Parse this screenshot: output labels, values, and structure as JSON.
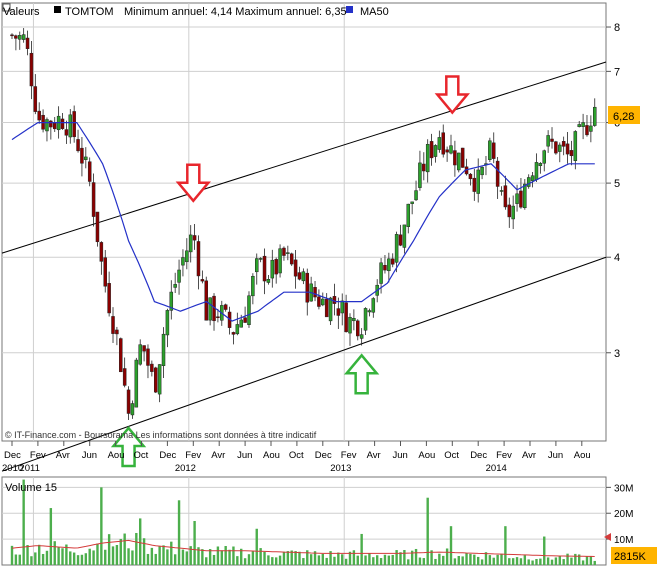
{
  "header": {
    "label": "Valeurs",
    "ticker": "TOMTOM",
    "range_text": "Minimum annuel: 4,14 Maximum annuel: 6,35",
    "ma_label": "MA50"
  },
  "price_badge": "6,28",
  "volume_badge": "2815K",
  "watermark": "© IT-Finance.com - Boursorama Les informations sont données à titre indicatif",
  "colors": {
    "up": "#2ca02c",
    "down": "#8b0000",
    "ma": "#2431c8",
    "trendline": "#000000",
    "grid": "#cfcfcf",
    "badge": "#ffb400",
    "arrow_down": "#e8262c",
    "arrow_up": "#36b33c",
    "volume_bar": "#4cae4c",
    "volume_ma": "#d43a3a"
  },
  "chart_data": [
    {
      "type": "candlestick",
      "title": "TOMTOM",
      "scale": "log",
      "ylim": [
        2.3,
        8.6
      ],
      "yticks": [
        3,
        4,
        5,
        6,
        7,
        8
      ],
      "x_tick_labels": [
        "Dec",
        "Fev",
        "Avr",
        "Jun",
        "Aou",
        "Oct",
        "Dec",
        "Fev",
        "Avr",
        "Jun",
        "Aou",
        "Oct",
        "Dec",
        "Fev",
        "Avr",
        "Jun",
        "Aou",
        "Oct",
        "Dec",
        "Fev",
        "Avr",
        "Jun",
        "Aou"
      ],
      "year_labels": [
        "2010",
        "2011",
        "2012",
        "2013",
        "2014"
      ],
      "price_anchors": [
        [
          "2010-12",
          7.8
        ],
        [
          "2011-01",
          7.7
        ],
        [
          "2011-02",
          6.1
        ],
        [
          "2011-03",
          6.0
        ],
        [
          "2011-04",
          6.1
        ],
        [
          "2011-05",
          5.7
        ],
        [
          "2011-06",
          5.0
        ],
        [
          "2011-07",
          3.8
        ],
        [
          "2011-08",
          3.2
        ],
        [
          "2011-09",
          2.5
        ],
        [
          "2011-10",
          3.1
        ],
        [
          "2011-11",
          2.7
        ],
        [
          "2011-12",
          3.4
        ],
        [
          "2012-01",
          3.9
        ],
        [
          "2012-02",
          4.3
        ],
        [
          "2012-03",
          3.4
        ],
        [
          "2012-04",
          3.4
        ],
        [
          "2012-05",
          3.2
        ],
        [
          "2012-06",
          3.4
        ],
        [
          "2012-07",
          3.9
        ],
        [
          "2012-08",
          3.8
        ],
        [
          "2012-09",
          4.0
        ],
        [
          "2012-10",
          3.8
        ],
        [
          "2012-11",
          3.6
        ],
        [
          "2012-12",
          3.5
        ],
        [
          "2013-01",
          3.5
        ],
        [
          "2013-02",
          3.3
        ],
        [
          "2013-03",
          3.3
        ],
        [
          "2013-04",
          3.7
        ],
        [
          "2013-05",
          3.9
        ],
        [
          "2013-06",
          4.3
        ],
        [
          "2013-07",
          4.8
        ],
        [
          "2013-08",
          5.4
        ],
        [
          "2013-09",
          5.8
        ],
        [
          "2013-10",
          5.5
        ],
        [
          "2013-11",
          5.3
        ],
        [
          "2013-12",
          5.0
        ],
        [
          "2014-01",
          5.5
        ],
        [
          "2014-02",
          4.5
        ],
        [
          "2014-03",
          4.7
        ],
        [
          "2014-04",
          5.2
        ],
        [
          "2014-05",
          5.6
        ],
        [
          "2014-06",
          5.6
        ],
        [
          "2014-07",
          5.4
        ],
        [
          "2014-08",
          5.8
        ],
        [
          "2014-09",
          6.3
        ]
      ],
      "series": [
        {
          "name": "MA50",
          "values": [
            [
              "2010-12",
              5.7
            ],
            [
              "2011-02",
              6.0
            ],
            [
              "2011-05",
              6.0
            ],
            [
              "2011-07",
              5.3
            ],
            [
              "2011-09",
              4.2
            ],
            [
              "2011-11",
              3.5
            ],
            [
              "2012-01",
              3.4
            ],
            [
              "2012-03",
              3.5
            ],
            [
              "2012-05",
              3.3
            ],
            [
              "2012-07",
              3.4
            ],
            [
              "2012-09",
              3.6
            ],
            [
              "2012-11",
              3.6
            ],
            [
              "2013-01",
              3.5
            ],
            [
              "2013-03",
              3.5
            ],
            [
              "2013-05",
              3.7
            ],
            [
              "2013-07",
              4.2
            ],
            [
              "2013-09",
              4.8
            ],
            [
              "2013-11",
              5.2
            ],
            [
              "2014-01",
              5.3
            ],
            [
              "2014-03",
              4.9
            ],
            [
              "2014-05",
              5.1
            ],
            [
              "2014-07",
              5.3
            ],
            [
              "2014-09",
              5.3
            ]
          ]
        }
      ],
      "trendlines": [
        {
          "from": [
            "2010-12",
            4.05
          ],
          "to": [
            "2014-10",
            7.2
          ]
        },
        {
          "from": [
            "2010-12",
            2.1
          ],
          "to": [
            "2014-10",
            4.0
          ]
        }
      ],
      "annotations": [
        {
          "type": "arrow-down",
          "at": [
            "2012-02",
            4.6
          ]
        },
        {
          "type": "arrow-down",
          "at": [
            "2013-10",
            6.0
          ]
        },
        {
          "type": "arrow-up",
          "at": [
            "2011-09",
            2.45
          ]
        },
        {
          "type": "arrow-up",
          "at": [
            "2013-03",
            3.05
          ]
        }
      ]
    },
    {
      "type": "bar",
      "title": "Volume 15",
      "yticks": [
        "10M",
        "20M",
        "30M"
      ],
      "ylim": [
        0,
        34
      ],
      "unit": "M",
      "volume_anchors": [
        [
          "2010-12",
          6
        ],
        [
          "2011-02",
          7
        ],
        [
          "2011-05",
          6
        ],
        [
          "2011-07",
          8
        ],
        [
          "2011-09",
          9
        ],
        [
          "2011-11",
          7
        ],
        [
          "2012-01",
          6
        ],
        [
          "2012-03",
          5
        ],
        [
          "2012-06",
          5
        ],
        [
          "2012-09",
          4.5
        ],
        [
          "2012-12",
          4
        ],
        [
          "2013-03",
          4
        ],
        [
          "2013-06",
          4
        ],
        [
          "2013-09",
          4.5
        ],
        [
          "2013-12",
          4
        ],
        [
          "2014-03",
          3.5
        ],
        [
          "2014-06",
          3
        ],
        [
          "2014-09",
          2.8
        ]
      ],
      "spikes": [
        [
          "2011-01",
          33
        ],
        [
          "2011-03",
          22
        ],
        [
          "2011-07",
          30
        ],
        [
          "2011-10",
          18
        ],
        [
          "2012-01",
          25
        ],
        [
          "2012-02",
          17
        ],
        [
          "2012-07",
          14
        ],
        [
          "2013-03",
          12
        ],
        [
          "2013-08",
          26
        ],
        [
          "2013-10",
          15
        ],
        [
          "2014-02",
          15
        ],
        [
          "2014-05",
          11
        ]
      ],
      "ma_value": 9
    }
  ]
}
